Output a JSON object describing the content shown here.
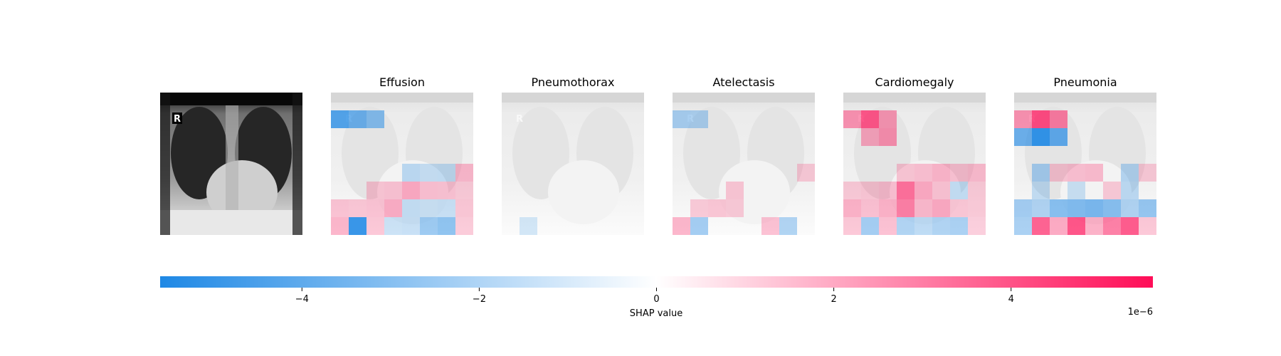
{
  "colors": {
    "negative": "#1e88e5",
    "zero": "#ffffff",
    "positive": "#ff0d57",
    "xray_dark": "#0a0a0a"
  },
  "chart_data": {
    "type": "heatmap",
    "title": "",
    "image_marker": "R",
    "grid_size": [
      8,
      8
    ],
    "panels": [
      {
        "name": "Effusion",
        "values": [
          [
            0,
            0,
            0,
            0,
            0,
            0,
            0,
            0
          ],
          [
            -4.0,
            -3.2,
            -2.4,
            0,
            0,
            0,
            0,
            0
          ],
          [
            0,
            0,
            0,
            0,
            0,
            0,
            0,
            0
          ],
          [
            0,
            0,
            0,
            0,
            0,
            0,
            0,
            0
          ],
          [
            0,
            0,
            0,
            0,
            -0.8,
            -0.5,
            -0.6,
            0.8
          ],
          [
            0,
            0,
            0.4,
            0.5,
            1.2,
            0.6,
            0.5,
            0.3
          ],
          [
            0.5,
            0.4,
            0.5,
            1.1,
            -0.6,
            -0.4,
            -0.5,
            0.4
          ],
          [
            0.9,
            -4.8,
            0.4,
            -0.4,
            -0.5,
            -1.8,
            -2.2,
            0.3
          ]
        ]
      },
      {
        "name": "Pneumothorax",
        "values": [
          [
            0,
            0,
            0,
            0,
            0,
            0,
            0,
            0
          ],
          [
            0,
            0,
            0,
            0,
            0,
            0,
            0,
            0
          ],
          [
            0,
            0,
            0,
            0,
            0,
            0,
            0,
            0
          ],
          [
            0,
            0,
            0,
            0,
            0,
            0,
            0,
            0
          ],
          [
            0,
            0,
            0,
            0,
            0,
            0,
            0,
            0
          ],
          [
            0,
            0,
            0,
            0,
            0,
            0,
            0,
            0
          ],
          [
            0,
            0,
            0,
            0,
            0,
            0,
            0,
            0
          ],
          [
            0,
            -0.2,
            0,
            0,
            0,
            0,
            0,
            0
          ]
        ]
      },
      {
        "name": "Atelectasis",
        "values": [
          [
            0,
            0,
            0,
            0,
            0,
            0,
            0,
            0
          ],
          [
            -1.4,
            -1.2,
            0,
            0,
            0,
            0,
            0,
            0
          ],
          [
            0,
            0,
            0,
            0,
            0,
            0,
            0,
            0
          ],
          [
            0,
            0,
            0,
            0,
            0,
            0,
            0,
            0
          ],
          [
            0,
            0,
            0,
            0,
            0,
            0,
            0,
            0.3
          ],
          [
            0,
            0,
            0,
            0.4,
            0,
            0,
            0,
            0
          ],
          [
            0,
            0.3,
            0.4,
            0.3,
            0,
            0,
            0,
            0
          ],
          [
            0.9,
            -1.6,
            0,
            0,
            0,
            0.6,
            -1.2,
            0
          ]
        ]
      },
      {
        "name": "Cardiomegaly",
        "values": [
          [
            0,
            0,
            0,
            0,
            0,
            0,
            0,
            0
          ],
          [
            1.8,
            3.5,
            1.6,
            0,
            0,
            0,
            0,
            0
          ],
          [
            0,
            1.2,
            1.8,
            0,
            0,
            0,
            0,
            0
          ],
          [
            0,
            0,
            0,
            0,
            0,
            0,
            0,
            0
          ],
          [
            0,
            0,
            0,
            0.4,
            0.6,
            0.9,
            0.5,
            0.7
          ],
          [
            0.3,
            0.4,
            0.6,
            2.8,
            1.2,
            0.5,
            -0.6,
            0.3
          ],
          [
            1.0,
            0.6,
            1.0,
            2.4,
            0.8,
            1.2,
            0.4,
            0.3
          ],
          [
            0.4,
            -1.6,
            0.6,
            -1.2,
            -0.8,
            -1.2,
            -1.4,
            0.2
          ]
        ]
      },
      {
        "name": "Pneumonia",
        "values": [
          [
            0,
            0,
            0,
            0,
            0,
            0,
            0,
            0
          ],
          [
            1.8,
            3.8,
            2.4,
            0,
            0,
            0,
            0,
            0
          ],
          [
            -3.2,
            -5.0,
            -3.6,
            0,
            0,
            0,
            0,
            0
          ],
          [
            0,
            0,
            0,
            0,
            0,
            0,
            0,
            0
          ],
          [
            0,
            -1.4,
            0.4,
            0.6,
            0.7,
            0,
            -1.0,
            0.3
          ],
          [
            0,
            -0.6,
            0,
            -0.4,
            0,
            0.3,
            -0.8,
            0
          ],
          [
            -1.6,
            -1.2,
            -2.4,
            -2.6,
            -2.8,
            -2.4,
            -1.2,
            -2.0
          ],
          [
            -1.4,
            3.2,
            1.2,
            3.6,
            1.0,
            2.4,
            3.4,
            0.4
          ]
        ]
      }
    ],
    "colorbar": {
      "label": "SHAP value",
      "range": [
        -5.6,
        5.6
      ],
      "ticks": [
        {
          "value": -4,
          "label": "−4"
        },
        {
          "value": -2,
          "label": "−2"
        },
        {
          "value": 0,
          "label": "0"
        },
        {
          "value": 2,
          "label": "2"
        },
        {
          "value": 4,
          "label": "4"
        }
      ],
      "scale_label": "1e−6"
    }
  }
}
